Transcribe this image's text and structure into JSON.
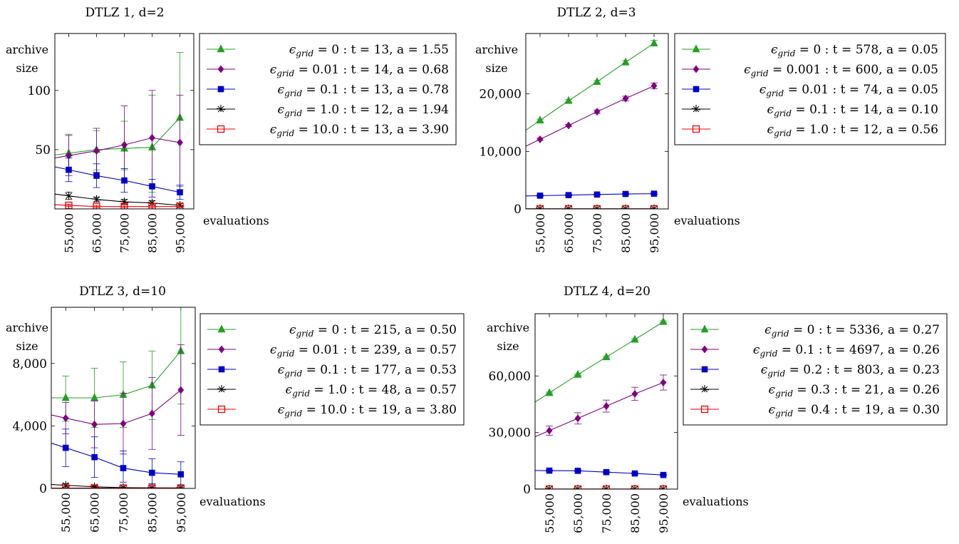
{
  "chart_data": [
    {
      "type": "line",
      "title": "DTLZ 1, d=2",
      "xlabel": "evaluations",
      "ylabel": [
        "archive",
        "size"
      ],
      "x": [
        55000,
        65000,
        75000,
        85000,
        95000
      ],
      "x_tick_labels": [
        "55,000",
        "65,000",
        "75,000",
        "85,000",
        "95,000"
      ],
      "y_ticks": [
        50,
        100
      ],
      "y_tick_labels": [
        "50",
        "100"
      ],
      "ylim": [
        0,
        148
      ],
      "xlim": [
        50000,
        100000
      ],
      "legend": "right",
      "series": [
        {
          "name": "ϵgrid = 0 : t = 13, a = 1.55",
          "color": "#22a022",
          "marker": "triangle",
          "values": [
            47,
            50,
            51,
            52,
            77
          ],
          "error": [
            [
              31,
              63
            ],
            [
              33,
              66
            ],
            [
              33,
              74
            ],
            [
              14,
              96
            ],
            [
              19,
              132
            ]
          ]
        },
        {
          "name": "ϵgrid = 0.01 : t = 14, a = 0.68",
          "color": "#800080",
          "marker": "diamond",
          "values": [
            45,
            49,
            54,
            60,
            56
          ],
          "error": [
            [
              28,
              62
            ],
            [
              31,
              68
            ],
            [
              22,
              87
            ],
            [
              20,
              100
            ],
            [
              16,
              96
            ]
          ]
        },
        {
          "name": "ϵgrid = 0.1 : t = 13, a = 0.78",
          "color": "#0000cc",
          "marker": "square",
          "values": [
            33,
            28,
            24,
            19,
            14
          ],
          "error": [
            [
              23,
              43
            ],
            [
              18,
              38
            ],
            [
              14,
              34
            ],
            [
              10,
              25
            ],
            [
              8,
              20
            ]
          ]
        },
        {
          "name": "ϵgrid = 1.0 : t = 12, a = 1.94",
          "color": "#000000",
          "marker": "star",
          "values": [
            11,
            8,
            6,
            5,
            3
          ],
          "error": [
            [
              8,
              14
            ],
            [
              6,
              10
            ],
            [
              4,
              8
            ],
            [
              3,
              7
            ],
            [
              2,
              5
            ]
          ]
        },
        {
          "name": "ϵgrid = 10.0 : t = 13, a = 3.90",
          "color": "#ee0000",
          "marker": "square-open",
          "values": [
            3,
            2,
            2,
            2,
            2
          ],
          "error": [
            [
              2,
              4
            ],
            [
              1,
              3
            ],
            [
              1,
              3
            ],
            [
              1,
              3
            ],
            [
              1,
              3
            ]
          ]
        }
      ]
    },
    {
      "type": "line",
      "title": "DTLZ 2, d=3",
      "xlabel": "evaluations",
      "ylabel": [
        "archive",
        "size"
      ],
      "x": [
        55000,
        65000,
        75000,
        85000,
        95000
      ],
      "x_tick_labels": [
        "55,000",
        "65,000",
        "75,000",
        "85,000",
        "95,000"
      ],
      "y_ticks": [
        0,
        10000,
        20000
      ],
      "y_tick_labels": [
        "0",
        "10,000",
        "20,000"
      ],
      "ylim": [
        0,
        30500
      ],
      "xlim": [
        50000,
        100000
      ],
      "legend": "right",
      "series": [
        {
          "name": "ϵgrid = 0 : t = 578, a = 0.05",
          "color": "#22a022",
          "marker": "triangle",
          "values": [
            15400,
            18800,
            22100,
            25500,
            28800
          ],
          "error": [
            [
              15200,
              15600
            ],
            [
              18600,
              19000
            ],
            [
              21900,
              22300
            ],
            [
              25200,
              25800
            ],
            [
              28400,
              29300
            ]
          ]
        },
        {
          "name": "ϵgrid = 0.001 : t = 600, a = 0.05",
          "color": "#800080",
          "marker": "diamond",
          "values": [
            12100,
            14500,
            16900,
            19200,
            21400
          ],
          "error": [
            [
              11900,
              12300
            ],
            [
              14300,
              14700
            ],
            [
              16600,
              17200
            ],
            [
              18800,
              19600
            ],
            [
              20900,
              21900
            ]
          ]
        },
        {
          "name": "ϵgrid = 0.01 : t = 74, a = 0.05",
          "color": "#0000cc",
          "marker": "square",
          "values": [
            2300,
            2400,
            2500,
            2600,
            2650
          ],
          "error": [
            [
              2200,
              2400
            ],
            [
              2300,
              2500
            ],
            [
              2400,
              2600
            ],
            [
              2500,
              2700
            ],
            [
              2550,
              2750
            ]
          ]
        },
        {
          "name": "ϵgrid = 0.1 : t = 14, a = 0.10",
          "color": "#000000",
          "marker": "star",
          "values": [
            30,
            30,
            30,
            30,
            30
          ],
          "error": [
            [
              20,
              40
            ],
            [
              20,
              40
            ],
            [
              20,
              40
            ],
            [
              20,
              40
            ],
            [
              20,
              40
            ]
          ]
        },
        {
          "name": "ϵgrid = 1.0 : t = 12, a = 0.56",
          "color": "#ee0000",
          "marker": "square-open",
          "values": [
            10,
            10,
            10,
            10,
            10
          ],
          "error": [
            [
              5,
              15
            ],
            [
              5,
              15
            ],
            [
              5,
              15
            ],
            [
              5,
              15
            ],
            [
              5,
              15
            ]
          ]
        }
      ]
    },
    {
      "type": "line",
      "title": "DTLZ 3, d=10",
      "xlabel": "evaluations",
      "ylabel": [
        "archive",
        "size"
      ],
      "x": [
        55000,
        65000,
        75000,
        85000,
        95000
      ],
      "x_tick_labels": [
        "55,000",
        "65,000",
        "75,000",
        "85,000",
        "95,000"
      ],
      "y_ticks": [
        0,
        4000,
        8000
      ],
      "y_tick_labels": [
        "0",
        "4,000",
        "8,000"
      ],
      "ylim": [
        0,
        11600
      ],
      "xlim": [
        50000,
        100000
      ],
      "legend": "right",
      "series": [
        {
          "name": "ϵgrid = 0 : t = 215, a = 0.50",
          "color": "#22a022",
          "marker": "triangle",
          "values": [
            5800,
            5800,
            6000,
            6600,
            8800
          ],
          "error": [
            [
              4300,
              7200
            ],
            [
              3900,
              7700
            ],
            [
              3900,
              8100
            ],
            [
              4400,
              8800
            ],
            [
              5400,
              11600
            ]
          ]
        },
        {
          "name": "ϵgrid = 0.01 : t = 239, a = 0.57",
          "color": "#800080",
          "marker": "diamond",
          "values": [
            4500,
            4100,
            4150,
            4800,
            6300
          ],
          "error": [
            [
              3500,
              5500
            ],
            [
              2600,
              5600
            ],
            [
              2200,
              6100
            ],
            [
              2500,
              7100
            ],
            [
              3400,
              9200
            ]
          ]
        },
        {
          "name": "ϵgrid = 0.1 : t = 177, a = 0.53",
          "color": "#0000cc",
          "marker": "square",
          "values": [
            2600,
            2000,
            1300,
            1000,
            900
          ],
          "error": [
            [
              1400,
              3800
            ],
            [
              700,
              3300
            ],
            [
              400,
              2400
            ],
            [
              300,
              1900
            ],
            [
              200,
              1700
            ]
          ]
        },
        {
          "name": "ϵgrid = 1.0 : t = 48, a = 0.57",
          "color": "#000000",
          "marker": "star",
          "values": [
            200,
            100,
            50,
            40,
            30
          ],
          "error": [
            [
              100,
              300
            ],
            [
              50,
              150
            ],
            [
              20,
              80
            ],
            [
              20,
              60
            ],
            [
              10,
              50
            ]
          ]
        },
        {
          "name": "ϵgrid = 10.0 : t = 19, a = 3.80",
          "color": "#ee0000",
          "marker": "square-open",
          "values": [
            20,
            20,
            20,
            20,
            20
          ],
          "error": [
            [
              10,
              30
            ],
            [
              10,
              30
            ],
            [
              10,
              30
            ],
            [
              10,
              30
            ],
            [
              10,
              30
            ]
          ]
        }
      ]
    },
    {
      "type": "line",
      "title": "DTLZ 4, d=20",
      "xlabel": "evaluations",
      "ylabel": [
        "archive",
        "size"
      ],
      "x": [
        55000,
        65000,
        75000,
        85000,
        95000
      ],
      "x_tick_labels": [
        "55,000",
        "65,000",
        "75,000",
        "85,000",
        "95,000"
      ],
      "y_ticks": [
        0,
        30000,
        60000
      ],
      "y_tick_labels": [
        "0",
        "30,000",
        "60,000"
      ],
      "ylim": [
        0,
        93000
      ],
      "xlim": [
        50000,
        100000
      ],
      "legend": "right",
      "series": [
        {
          "name": "ϵgrid = 0 : t = 5336, a = 0.27",
          "color": "#22a022",
          "marker": "triangle",
          "values": [
            51000,
            60700,
            70000,
            79300,
            88700
          ],
          "error": [
            [
              50600,
              51400
            ],
            [
              60300,
              61100
            ],
            [
              69600,
              70400
            ],
            [
              78900,
              79700
            ],
            [
              88200,
              89200
            ]
          ]
        },
        {
          "name": "ϵgrid = 0.1 : t = 4697, a = 0.26",
          "color": "#800080",
          "marker": "diamond",
          "values": [
            31000,
            37500,
            44000,
            50500,
            56500
          ],
          "error": [
            [
              28500,
              33500
            ],
            [
              34500,
              40500
            ],
            [
              40800,
              47200
            ],
            [
              47000,
              54000
            ],
            [
              52500,
              60500
            ]
          ]
        },
        {
          "name": "ϵgrid = 0.2 : t = 803, a = 0.23",
          "color": "#0000cc",
          "marker": "square",
          "values": [
            9800,
            9700,
            9000,
            8300,
            7500
          ],
          "error": [
            [
              9500,
              10100
            ],
            [
              9400,
              10000
            ],
            [
              8700,
              9300
            ],
            [
              8000,
              8600
            ],
            [
              7200,
              7800
            ]
          ]
        },
        {
          "name": "ϵgrid = 0.3 : t = 21, a = 0.26",
          "color": "#000000",
          "marker": "star",
          "values": [
            30,
            30,
            30,
            30,
            30
          ],
          "error": [
            [
              20,
              40
            ],
            [
              20,
              40
            ],
            [
              20,
              40
            ],
            [
              20,
              40
            ],
            [
              20,
              40
            ]
          ]
        },
        {
          "name": "ϵgrid = 0.4 : t = 19, a = 0.30",
          "color": "#ee0000",
          "marker": "square-open",
          "values": [
            20,
            20,
            20,
            20,
            20
          ],
          "error": [
            [
              10,
              30
            ],
            [
              10,
              30
            ],
            [
              10,
              30
            ],
            [
              10,
              30
            ],
            [
              10,
              30
            ]
          ]
        }
      ]
    }
  ]
}
